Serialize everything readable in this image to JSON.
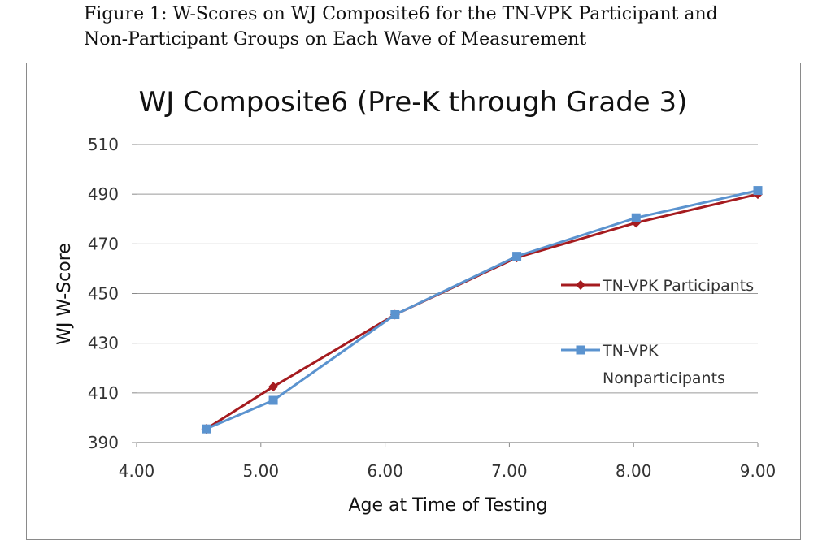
{
  "caption": {
    "line1": "Figure 1: W-Scores on WJ Composite6 for the TN-VPK Participant and",
    "line2": "Non-Participant Groups on Each Wave of Measurement"
  },
  "chart_data": {
    "type": "line",
    "title": "WJ Composite6 (Pre-K through Grade 3)",
    "xlabel": "Age at Time of Testing",
    "ylabel": "WJ W-Score",
    "xlim": [
      4.0,
      9.0
    ],
    "ylim": [
      390,
      510
    ],
    "x_ticks": [
      "4.00",
      "5.00",
      "6.00",
      "7.00",
      "8.00",
      "9.00"
    ],
    "y_ticks": [
      "390",
      "410",
      "430",
      "450",
      "470",
      "490",
      "510"
    ],
    "grid": "horizontal",
    "legend_position": "right",
    "series": [
      {
        "name": "TN-VPK Participants",
        "color": "#a51b1f",
        "marker": "diamond",
        "x": [
          4.56,
          5.1,
          6.08,
          7.06,
          8.02,
          9.0
        ],
        "y": [
          395.5,
          412.5,
          441.5,
          464.5,
          478.5,
          490.0
        ]
      },
      {
        "name": "TN-VPK Nonparticipants",
        "name_lines": [
          "TN-VPK",
          "Nonparticipants"
        ],
        "color": "#5b93cf",
        "marker": "square",
        "x": [
          4.56,
          5.1,
          6.08,
          7.06,
          8.02,
          9.0
        ],
        "y": [
          395.5,
          407.0,
          441.5,
          465.0,
          480.5,
          491.5
        ]
      }
    ]
  }
}
